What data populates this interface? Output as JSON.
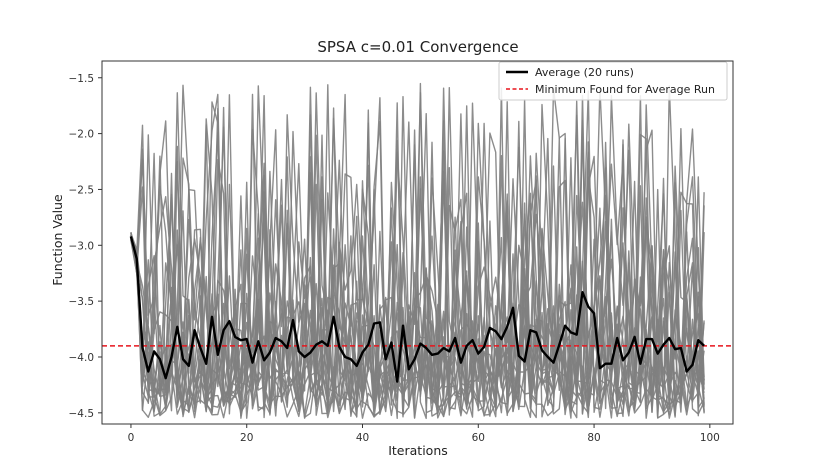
{
  "chart_data": {
    "type": "line",
    "title": "SPSA c=0.01 Convergence",
    "xlabel": "Iterations",
    "ylabel": "Function Value",
    "xlim": [
      -5,
      104
    ],
    "ylim": [
      -4.6,
      -1.35
    ],
    "x_ticks": [
      0,
      20,
      40,
      60,
      80,
      100
    ],
    "y_ticks": [
      -4.5,
      -4.0,
      -3.5,
      -3.0,
      -2.5,
      -2.0,
      -1.5
    ],
    "x_tick_labels": [
      "0",
      "20",
      "40",
      "60",
      "80",
      "100"
    ],
    "y_tick_labels": [
      "−4.5",
      "−4.0",
      "−3.5",
      "−3.0",
      "−2.5",
      "−2.0",
      "−1.5"
    ],
    "grid": false,
    "legend": {
      "position": "top-right",
      "entries": [
        {
          "label": "Average (20 runs)",
          "color": "#000000",
          "style": "solid"
        },
        {
          "label": "Minimum Found for Average Run",
          "color": "#e8141c",
          "style": "dashed"
        }
      ]
    },
    "run_color": "#808080",
    "average_color": "#000000",
    "minimum_color": "#e8141c",
    "minimum_value": -3.9,
    "run_count": 20,
    "average": {
      "name": "Average (20 runs)",
      "x": [
        0,
        1,
        2,
        3,
        4,
        5,
        6,
        7,
        8,
        9,
        10,
        11,
        12,
        13,
        14,
        15,
        16,
        17,
        18,
        19,
        20,
        21,
        22,
        23,
        24,
        25,
        26,
        27,
        28,
        29,
        30,
        31,
        32,
        33,
        34,
        35,
        36,
        37,
        38,
        39,
        40,
        41,
        42,
        43,
        44,
        45,
        46,
        47,
        48,
        49,
        50,
        51,
        52,
        53,
        54,
        55,
        56,
        57,
        58,
        59,
        60,
        61,
        62,
        63,
        64,
        65,
        66,
        67,
        68,
        69,
        70,
        71,
        72,
        73,
        74,
        75,
        76,
        77,
        78,
        79,
        80,
        81,
        82,
        83,
        84,
        85,
        86,
        87,
        88,
        89,
        90,
        91,
        92,
        93,
        94,
        95,
        96,
        97,
        98,
        99
      ],
      "y": [
        -2.92,
        -3.12,
        -3.92,
        -4.13,
        -3.95,
        -4.02,
        -4.19,
        -4.0,
        -3.73,
        -4.02,
        -4.08,
        -3.76,
        -3.92,
        -4.06,
        -3.64,
        -3.98,
        -3.76,
        -3.68,
        -3.82,
        -3.85,
        -3.84,
        -4.05,
        -3.86,
        -4.03,
        -3.96,
        -3.83,
        -3.86,
        -3.92,
        -3.67,
        -3.95,
        -4.0,
        -3.96,
        -3.89,
        -3.86,
        -3.9,
        -3.64,
        -3.91,
        -4.0,
        -4.02,
        -4.08,
        -3.96,
        -3.89,
        -3.7,
        -3.69,
        -4.02,
        -3.87,
        -4.22,
        -3.72,
        -4.11,
        -4.02,
        -3.88,
        -3.92,
        -3.98,
        -3.97,
        -3.92,
        -3.95,
        -3.83,
        -4.05,
        -3.9,
        -3.85,
        -3.97,
        -3.91,
        -3.74,
        -3.77,
        -3.84,
        -3.73,
        -3.56,
        -3.99,
        -4.04,
        -3.76,
        -3.78,
        -3.94,
        -4.0,
        -4.05,
        -3.89,
        -3.72,
        -3.78,
        -3.8,
        -3.42,
        -3.55,
        -3.61,
        -4.1,
        -4.06,
        -4.06,
        -3.83,
        -4.03,
        -3.96,
        -3.82,
        -4.06,
        -3.84,
        -3.84,
        -3.97,
        -3.89,
        -3.83,
        -3.93,
        -3.92,
        -4.13,
        -4.07,
        -3.85,
        -3.9
      ]
    }
  }
}
